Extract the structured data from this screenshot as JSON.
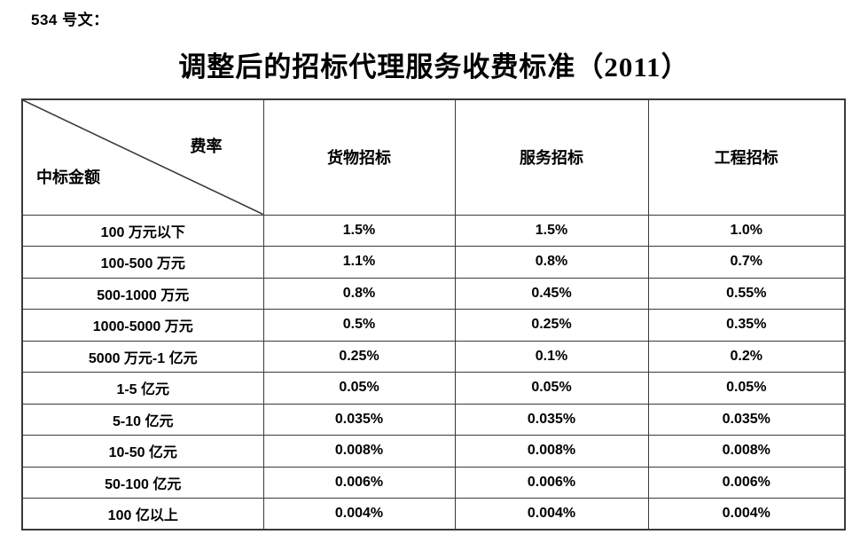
{
  "doc": {
    "ref": "534 号文：",
    "title": "调整后的招标代理服务收费标准（2011）"
  },
  "table": {
    "corner": {
      "top_right": "费率",
      "bottom_left": "中标金额"
    },
    "columns": [
      "货物招标",
      "服务招标",
      "工程招标"
    ],
    "rows": [
      {
        "label": "100 万元以下",
        "values": [
          "1.5%",
          "1.5%",
          "1.0%"
        ]
      },
      {
        "label": "100-500 万元",
        "values": [
          "1.1%",
          "0.8%",
          "0.7%"
        ]
      },
      {
        "label": "500-1000 万元",
        "values": [
          "0.8%",
          "0.45%",
          "0.55%"
        ]
      },
      {
        "label": "1000-5000 万元",
        "values": [
          "0.5%",
          "0.25%",
          "0.35%"
        ]
      },
      {
        "label": "5000 万元-1 亿元",
        "values": [
          "0.25%",
          "0.1%",
          "0.2%"
        ]
      },
      {
        "label": "1-5 亿元",
        "values": [
          "0.05%",
          "0.05%",
          "0.05%"
        ]
      },
      {
        "label": "5-10 亿元",
        "values": [
          "0.035%",
          "0.035%",
          "0.035%"
        ]
      },
      {
        "label": "10-50 亿元",
        "values": [
          "0.008%",
          "0.008%",
          "0.008%"
        ]
      },
      {
        "label": "50-100 亿元",
        "values": [
          "0.006%",
          "0.006%",
          "0.006%"
        ]
      },
      {
        "label": "100 亿以上",
        "values": [
          "0.004%",
          "0.004%",
          "0.004%"
        ]
      }
    ]
  },
  "colors": {
    "text": "#000000",
    "border": "#3a3a3a",
    "background": "#ffffff"
  }
}
